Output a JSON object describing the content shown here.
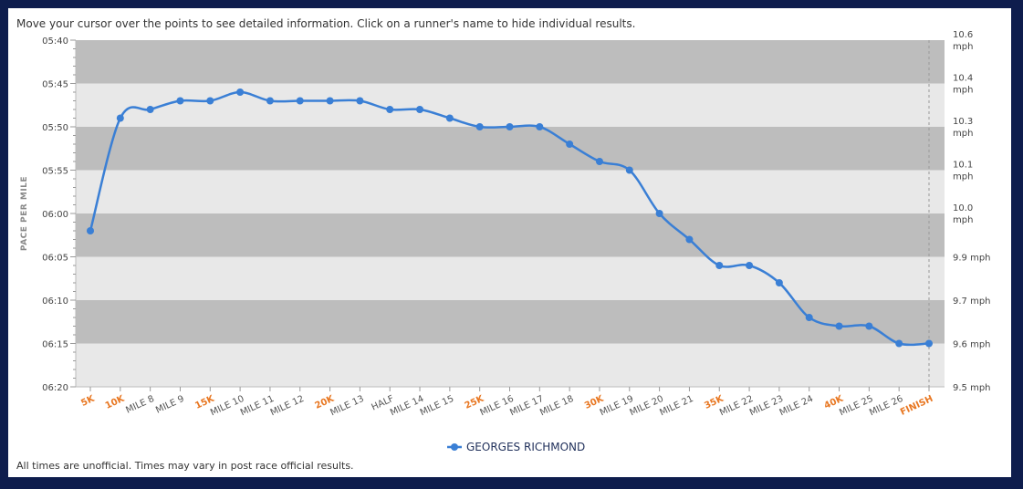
{
  "page": {
    "instructions": "Move your cursor over the points to see detailed information. Click on a runner's name to hide individual results.",
    "footer": "All times are unofficial. Times may vary in post race official results."
  },
  "colors": {
    "background": "#0e1d4d",
    "band_dark": "#bdbdbd",
    "band_light": "#e8e8e8",
    "series": "#3a7fd5",
    "split_highlight": "#e87722",
    "split_normal": "#555555"
  },
  "chart_data": {
    "type": "line",
    "ylabel": "PACE PER MILE",
    "y_reversed": true,
    "grid": true,
    "legend_position": "bottom-center",
    "y_ticks": [
      "05:40",
      "05:45",
      "05:50",
      "05:55",
      "06:00",
      "06:05",
      "06:10",
      "06:15",
      "06:20"
    ],
    "y2_ticks": [
      {
        "value": 340,
        "line1": "10.6",
        "line2": "mph"
      },
      {
        "value": 345,
        "line1": "10.4",
        "line2": "mph"
      },
      {
        "value": 350,
        "line1": "10.3",
        "line2": "mph"
      },
      {
        "value": 355,
        "line1": "10.1",
        "line2": "mph"
      },
      {
        "value": 360,
        "line1": "10.0",
        "line2": "mph"
      },
      {
        "value": 365,
        "line1": "9.9 mph",
        "line2": ""
      },
      {
        "value": 370,
        "line1": "9.7 mph",
        "line2": ""
      },
      {
        "value": 375,
        "line1": "9.6 mph",
        "line2": ""
      },
      {
        "value": 380,
        "line1": "9.5 mph",
        "line2": ""
      }
    ],
    "ylim_seconds": [
      340,
      380
    ],
    "categories": [
      "5K",
      "10K",
      "MILE 8",
      "MILE 9",
      "15K",
      "MILE 10",
      "MILE 11",
      "MILE 12",
      "20K",
      "MILE 13",
      "HALF",
      "MILE 14",
      "MILE 15",
      "25K",
      "MILE 16",
      "MILE 17",
      "MILE 18",
      "30K",
      "MILE 19",
      "MILE 20",
      "MILE 21",
      "35K",
      "MILE 22",
      "MILE 23",
      "MILE 24",
      "40K",
      "MILE 25",
      "MILE 26",
      "FINISH"
    ],
    "highlight_categories": [
      "5K",
      "10K",
      "15K",
      "20K",
      "25K",
      "30K",
      "35K",
      "40K",
      "FINISH"
    ],
    "series": [
      {
        "name": "GEORGES RICHMOND",
        "values": [
          "06:02",
          "05:49",
          "05:48",
          "05:47",
          "05:47",
          "05:46",
          "05:47",
          "05:47",
          "05:47",
          "05:47",
          "05:48",
          "05:48",
          "05:49",
          "05:50",
          "05:50",
          "05:50",
          "05:52",
          "05:54",
          "05:55",
          "06:00",
          "06:03",
          "06:06",
          "06:06",
          "06:08",
          "06:12",
          "06:13",
          "06:13",
          "06:15",
          "06:15"
        ]
      }
    ]
  }
}
